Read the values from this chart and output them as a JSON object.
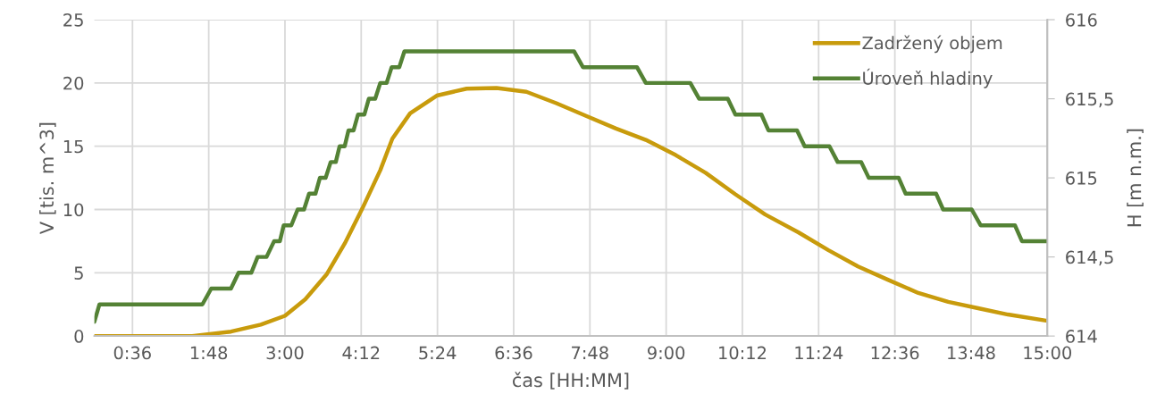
{
  "chart_data": {
    "type": "line",
    "xlabel": "čas [HH:MM]",
    "ylabel": "V [tis. m^3]",
    "y2label": "H [m n.m.]",
    "xlim": [
      0,
      15
    ],
    "xticks": [
      {
        "value": 0.6,
        "label": "0:36"
      },
      {
        "value": 1.8,
        "label": "1:48"
      },
      {
        "value": 3.0,
        "label": "3:00"
      },
      {
        "value": 4.2,
        "label": "4:12"
      },
      {
        "value": 5.4,
        "label": "5:24"
      },
      {
        "value": 6.6,
        "label": "6:36"
      },
      {
        "value": 7.8,
        "label": "7:48"
      },
      {
        "value": 9.0,
        "label": "9:00"
      },
      {
        "value": 10.2,
        "label": "10:12"
      },
      {
        "value": 11.4,
        "label": "11:24"
      },
      {
        "value": 12.6,
        "label": "12:36"
      },
      {
        "value": 13.8,
        "label": "13:48"
      },
      {
        "value": 15.0,
        "label": "15:00"
      }
    ],
    "ylim": [
      0,
      25
    ],
    "yticks": [
      0,
      5,
      10,
      15,
      20,
      25
    ],
    "y2lim": [
      614,
      616
    ],
    "y2ticks": [
      614,
      {
        "value": 614.5,
        "label": "614,5"
      },
      615,
      {
        "value": 615.5,
        "label": "615,5"
      },
      616
    ],
    "grid": true,
    "legend": "top right",
    "line_style": "solid",
    "marker": "none",
    "series": [
      {
        "name": "Zadržený objem",
        "color": "#c89b0c",
        "x": [
          0,
          1.0,
          1.54,
          2.15,
          2.62,
          3.0,
          3.32,
          3.66,
          3.94,
          4.22,
          4.5,
          4.69,
          4.97,
          5.39,
          5.86,
          6.33,
          6.8,
          7.27,
          7.74,
          8.21,
          8.68,
          9.15,
          9.62,
          10.09,
          10.56,
          11.08,
          11.55,
          12.02,
          12.49,
          12.97,
          13.44,
          13.91,
          14.38,
          15.0
        ],
        "values": [
          0,
          0,
          0,
          0.35,
          0.9,
          1.6,
          2.9,
          4.9,
          7.3,
          10.1,
          13.1,
          15.6,
          17.6,
          19.0,
          19.55,
          19.6,
          19.3,
          18.4,
          17.4,
          16.4,
          15.5,
          14.3,
          12.9,
          11.2,
          9.6,
          8.2,
          6.8,
          5.5,
          4.45,
          3.4,
          2.7,
          2.2,
          1.7,
          1.2
        ]
      },
      {
        "name": "Úroveň hladiny",
        "color": "#548235",
        "axis": "y2",
        "x": [
          0,
          0.08,
          1.7,
          1.84,
          2.15,
          2.27,
          2.47,
          2.57,
          2.71,
          2.83,
          2.92,
          2.98,
          3.1,
          3.2,
          3.3,
          3.38,
          3.48,
          3.55,
          3.64,
          3.72,
          3.8,
          3.86,
          3.94,
          4.0,
          4.08,
          4.15,
          4.25,
          4.32,
          4.42,
          4.5,
          4.6,
          4.68,
          4.8,
          4.88,
          7.55,
          7.69,
          8.54,
          8.68,
          9.38,
          9.52,
          9.97,
          10.09,
          10.5,
          10.61,
          11.06,
          11.18,
          11.57,
          11.7,
          12.07,
          12.19,
          12.66,
          12.77,
          13.25,
          13.36,
          13.81,
          13.95,
          14.49,
          14.6,
          15.0
        ],
        "values": [
          614.09,
          614.2,
          614.2,
          614.3,
          614.3,
          614.4,
          614.4,
          614.5,
          614.5,
          614.6,
          614.6,
          614.7,
          614.7,
          614.8,
          614.8,
          614.9,
          614.9,
          615.0,
          615.0,
          615.1,
          615.1,
          615.2,
          615.2,
          615.3,
          615.3,
          615.4,
          615.4,
          615.5,
          615.5,
          615.6,
          615.6,
          615.7,
          615.7,
          615.8,
          615.8,
          615.7,
          615.7,
          615.6,
          615.6,
          615.5,
          615.5,
          615.4,
          615.4,
          615.3,
          615.3,
          615.2,
          615.2,
          615.1,
          615.1,
          615.0,
          615.0,
          614.9,
          614.9,
          614.8,
          614.8,
          614.7,
          614.7,
          614.6,
          614.6
        ]
      }
    ]
  }
}
